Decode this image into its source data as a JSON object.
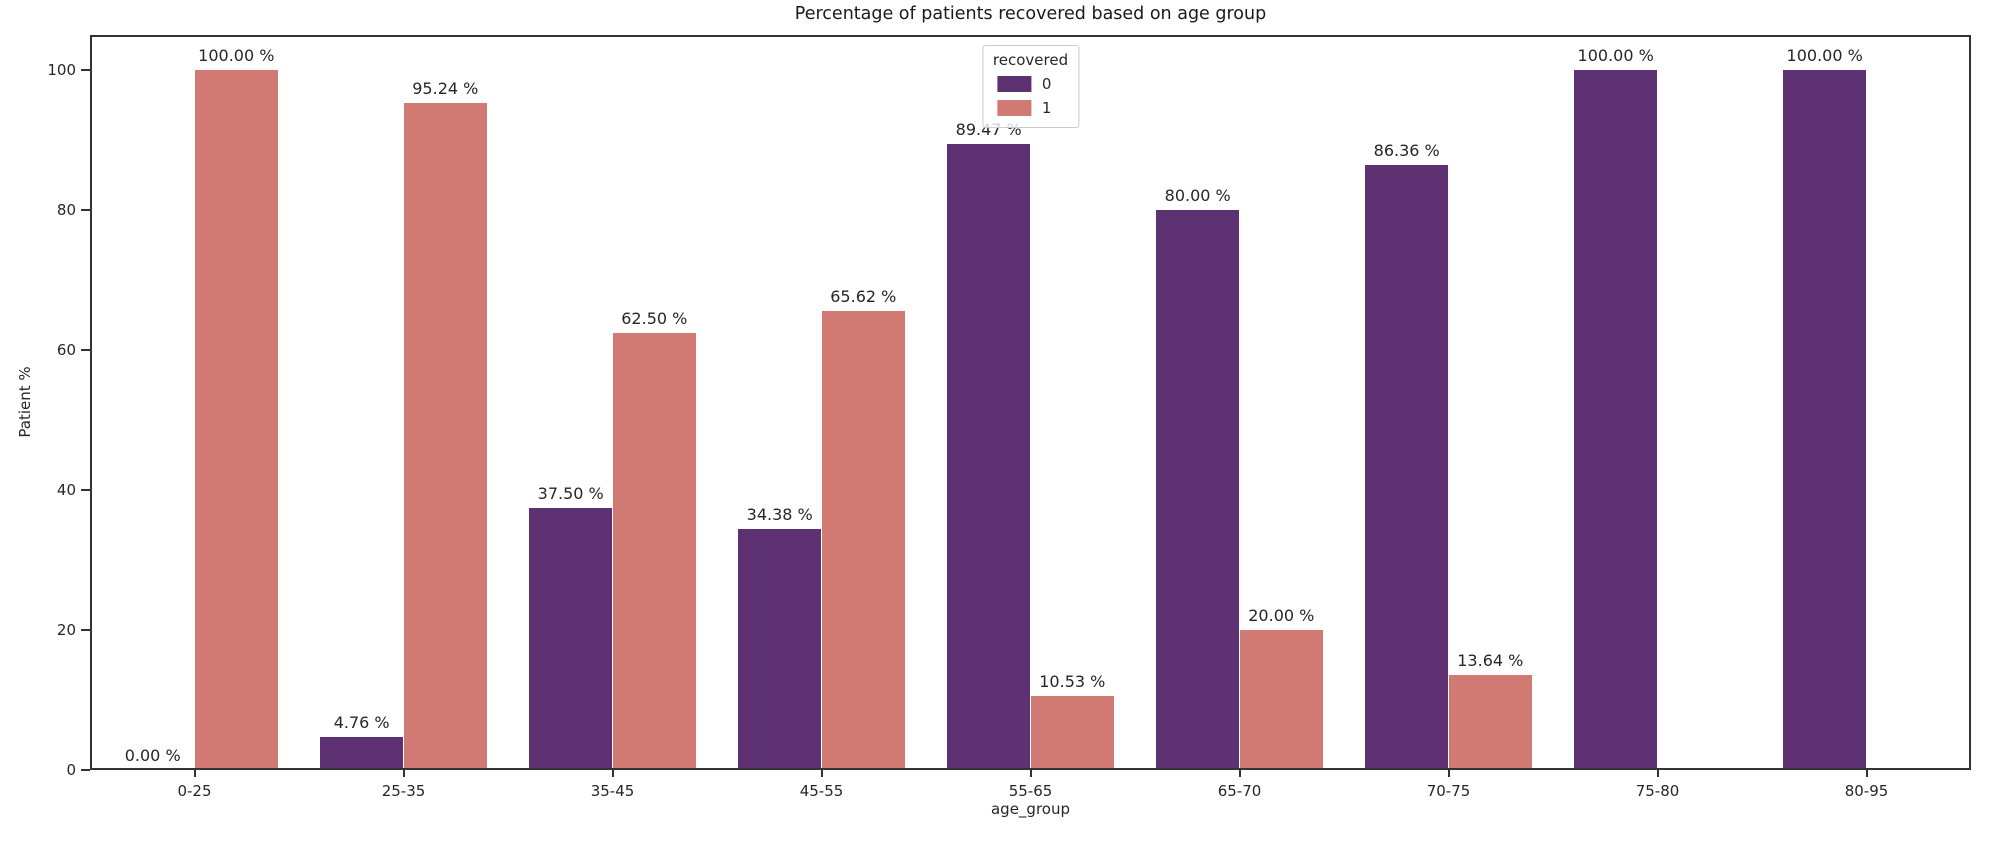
{
  "chart_data": {
    "type": "bar",
    "title": "Percentage of patients recovered based on age group",
    "xlabel": "age_group",
    "ylabel": "Patient %",
    "categories": [
      "0-25",
      "25-35",
      "35-45",
      "45-55",
      "55-65",
      "65-70",
      "70-75",
      "75-80",
      "80-95"
    ],
    "series": [
      {
        "name": "0",
        "color": "#5e3272",
        "values": [
          0,
          4.76,
          37.5,
          34.38,
          89.47,
          80,
          86.36,
          100,
          100
        ],
        "labels": [
          "0.00 %",
          "4.76 %",
          "37.50 %",
          "34.38 %",
          "89.47 %",
          "80.00 %",
          "86.36 %",
          "100.00 %",
          "100.00 %"
        ]
      },
      {
        "name": "1",
        "color": "#d07a73",
        "values": [
          100,
          95.24,
          62.5,
          65.62,
          10.53,
          20,
          13.64,
          null,
          null
        ],
        "labels": [
          "100.00 %",
          "95.24 %",
          "62.50 %",
          "65.62 %",
          "10.53 %",
          "20.00 %",
          "13.64 %",
          null,
          null
        ]
      }
    ],
    "yticks": [
      0,
      20,
      40,
      60,
      80,
      100
    ],
    "ylim": [
      0,
      105
    ],
    "legend": {
      "title": "recovered",
      "position": "upper center"
    },
    "grid": false
  }
}
